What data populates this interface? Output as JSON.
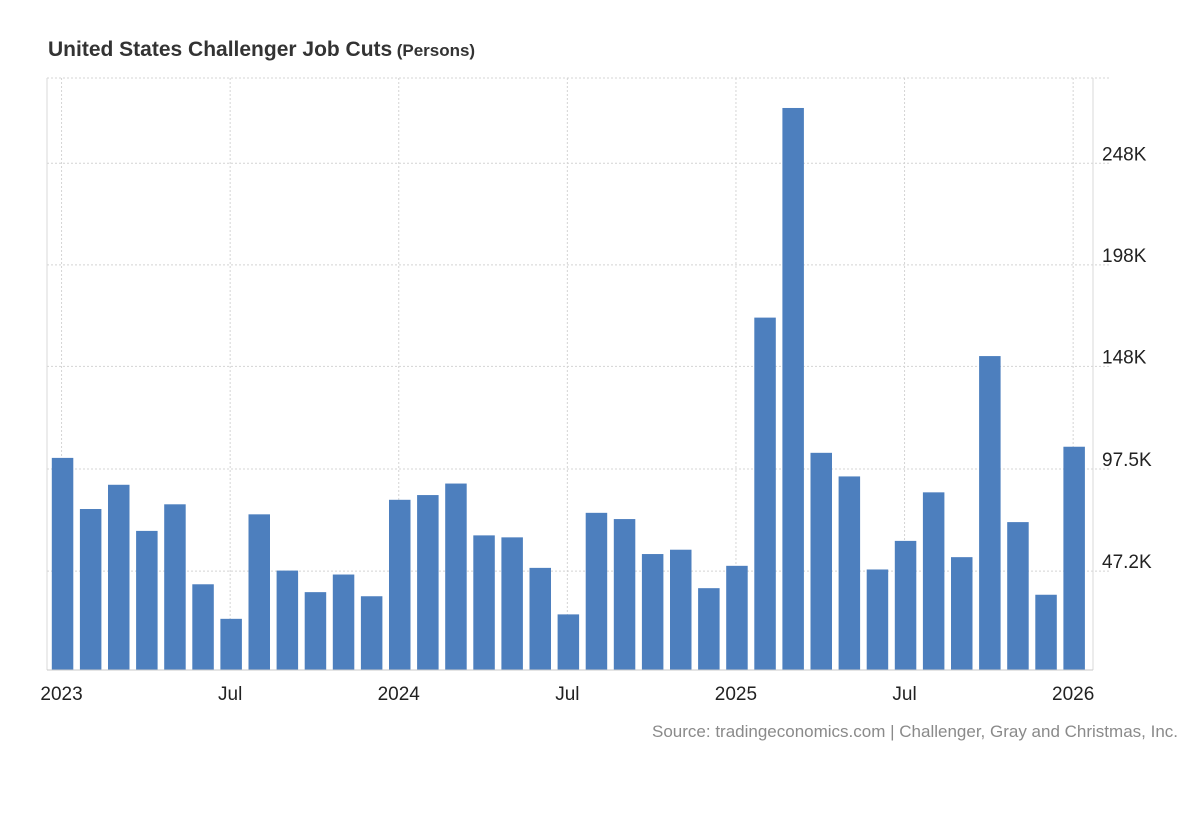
{
  "chart_data": {
    "type": "bar",
    "title": "United States Challenger Job Cuts",
    "unit": "(Persons)",
    "source": "Source: tradingeconomics.com | Challenger, Gray and Christmas, Inc.",
    "bar_color": "#4d7fbe",
    "grid": true,
    "ylim": [
      -1500,
      290000
    ],
    "y_ticks": [
      {
        "value": 47200,
        "label": "47.2K"
      },
      {
        "value": 97500,
        "label": "97.5K"
      },
      {
        "value": 148000,
        "label": "148K"
      },
      {
        "value": 198000,
        "label": "198K"
      },
      {
        "value": 248000,
        "label": "248K"
      }
    ],
    "x_ticks": [
      {
        "index": 0,
        "label": "2023"
      },
      {
        "index": 6,
        "label": "Jul"
      },
      {
        "index": 12,
        "label": "2024"
      },
      {
        "index": 18,
        "label": "Jul"
      },
      {
        "index": 24,
        "label": "2025"
      },
      {
        "index": 30,
        "label": "Jul"
      },
      {
        "index": 36,
        "label": "2026"
      }
    ],
    "categories": [
      "2023-01",
      "2023-02",
      "2023-03",
      "2023-04",
      "2023-05",
      "2023-06",
      "2023-07",
      "2023-08",
      "2023-09",
      "2023-10",
      "2023-11",
      "2023-12",
      "2024-01",
      "2024-02",
      "2024-03",
      "2024-04",
      "2024-05",
      "2024-06",
      "2024-07",
      "2024-08",
      "2024-09",
      "2024-10",
      "2024-11",
      "2024-12",
      "2025-01",
      "2025-02",
      "2025-03",
      "2025-04",
      "2025-05",
      "2025-06",
      "2025-07",
      "2025-08",
      "2025-09",
      "2025-10",
      "2025-11",
      "2025-12",
      "2026-01"
    ],
    "values": [
      102943,
      77770,
      89703,
      66995,
      80089,
      40709,
      23697,
      75151,
      47457,
      36836,
      45510,
      34817,
      82307,
      84638,
      90309,
      64789,
      63816,
      48786,
      25885,
      75891,
      72821,
      55597,
      57727,
      38792,
      49795,
      172017,
      275240,
      105441,
      93816,
      47999,
      62075,
      85979,
      54064,
      153074,
      71321,
      35553,
      108435
    ]
  }
}
